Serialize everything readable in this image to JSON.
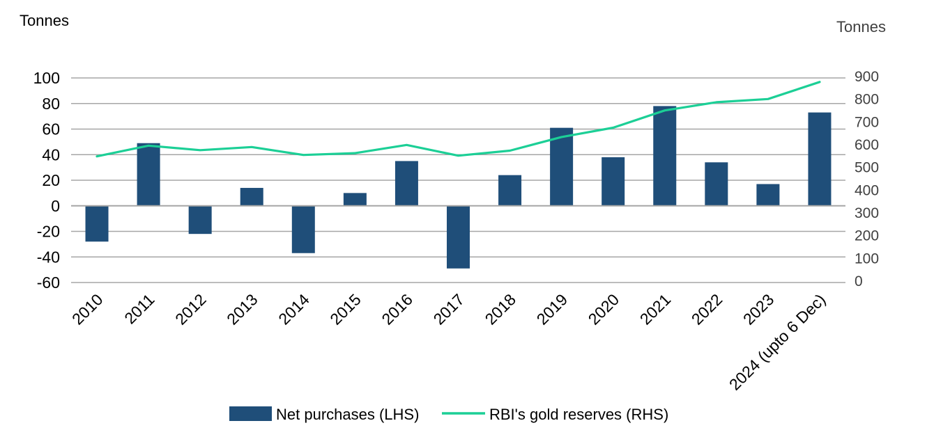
{
  "chart_data": {
    "type": "bar+line",
    "left_axis_unit": "Tonnes",
    "right_axis_unit": "Tonnes",
    "categories": [
      "2010",
      "2011",
      "2012",
      "2013",
      "2014",
      "2015",
      "2016",
      "2017",
      "2018",
      "2019",
      "2020",
      "2021",
      "2022",
      "2023",
      "2024 (upto 6 Dec)"
    ],
    "left_ticks": [
      "100",
      "80",
      "60",
      "40",
      "20",
      "0",
      "-20",
      "-40",
      "-60"
    ],
    "right_ticks": [
      "900",
      "800",
      "700",
      "600",
      "500",
      "400",
      "300",
      "200",
      "100",
      "0"
    ],
    "ylim_left": [
      -60,
      100
    ],
    "ylim_right": [
      0,
      900
    ],
    "grid": true,
    "series": [
      {
        "name": "Net purchases (LHS)",
        "type": "bar",
        "axis": "left",
        "color": "#1f4e79",
        "values": [
          -28,
          49,
          -22,
          14,
          -37,
          10,
          35,
          -49,
          24,
          61,
          38,
          78,
          34,
          17,
          73
        ]
      },
      {
        "name": "RBI's gold reserves (RHS)",
        "type": "line",
        "axis": "right",
        "color": "#1ccf96",
        "values": [
          549,
          596,
          576,
          590,
          555,
          563,
          599,
          552,
          574,
          634,
          675,
          751,
          787,
          801,
          876
        ]
      }
    ],
    "legend_position": "bottom-center"
  }
}
